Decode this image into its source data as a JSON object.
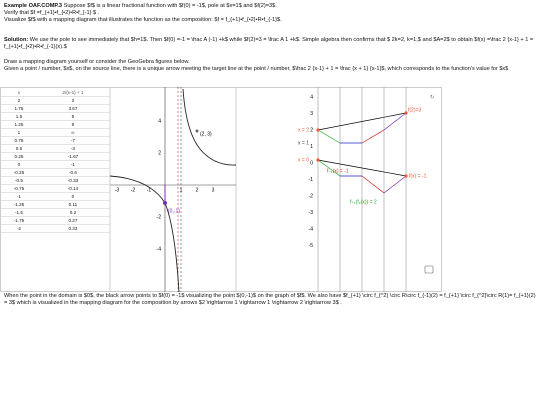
{
  "header": {
    "title": "Example OAF.COMP.3",
    "lines": [
      " Suppose $f$ is a linear fractional function with $f(0) = -1$, pole at $x=1$ and $f(2)=3$.",
      "Verify that $f =f_{+1}•f_{•2}•R•f_{-1} $ .",
      "Visualize $f$ with a mapping diagram that illustrates the function as the composition: $f = f_{+1}•f_{•2}•R•f_{-1}$."
    ]
  },
  "solution": {
    "label": "Solution:",
    "text": " We use the pole to see immediately that $h=1$. Then $f(0) =-1 = \\frac A (-1) +k$ while $f(2)=3 = \\frac A 1 +k$. Simple algebra then confirms that $ 2k=2, k=1,$ and $A=2$ to obtain $f(x) =\\frac 2 {x-1} + 1 = f_{+1}•f_{•2}•R•f_{-1}(x).$"
  },
  "instructions": [
    "Draw a mapping diagram yourself or consider the GeoGebra figures below.",
    "Given a point / number, $x$, on the source line, there is a unique arrow  meeting the target line at the point / number, $\\frac 2 {x-1} + 1 = \\frac {x + 1} {x-1}$,  which corresponds to the function's value for $x$"
  ],
  "table": {
    "header": [
      "x",
      "2/(x-1) + 1"
    ],
    "rows": [
      [
        "2",
        "3"
      ],
      [
        "1.75",
        "3.67"
      ],
      [
        "1.5",
        "5"
      ],
      [
        "1.25",
        "9"
      ],
      [
        "1",
        "∞"
      ],
      [
        "0.75",
        "-7"
      ],
      [
        "0.5",
        "-3"
      ],
      [
        "0.25",
        "-1.67"
      ],
      [
        "0",
        "-1"
      ],
      [
        "-0.25",
        "-0.6"
      ],
      [
        "-0.5",
        "-0.33"
      ],
      [
        "-0.75",
        "-0.14"
      ],
      [
        "-1",
        "0"
      ],
      [
        "-1.25",
        "0.11"
      ],
      [
        "-1.5",
        "0.2"
      ],
      [
        "-1.75",
        "0.27"
      ],
      [
        "-2",
        "0.33"
      ]
    ]
  },
  "graph": {
    "xticks": [
      "-3",
      "-2",
      "-1",
      "1",
      "2",
      "3"
    ],
    "yticks": [
      "4",
      "2",
      "-2",
      "-4"
    ],
    "point_labels": [
      "(2, 3)",
      "(0,-1)"
    ]
  },
  "mapping": {
    "axis_labels": [
      "4",
      "3",
      "2",
      "1",
      "0",
      "-1",
      "-2",
      "-3",
      "-4",
      "-5"
    ],
    "labels": [
      "x = 2",
      "x = 1",
      "x = 0",
      "f(2)=3",
      "f(x) = -1",
      "f₋₁(x) = -1",
      "f₊₁(f₂(x)) = 2"
    ]
  },
  "footer": "When the point in the domain is $0$, the black arrow points to $f(0) = -1$ visualizing the point $(0,-1)$ on the graph of $f$. We also have $f_{+1} \\circ f_{^2} \\circ R\\circ f_{-1}(2) = f_{+1} \\circ f_{^2}\\circ R(1)= f_{+1}(2) = 3$  which is visualized in the mapping diagram for the composition by arrows $2 \\rightarrow 1 \\rightarrow 1 \\rightarrow 2 \\rightarrow 3$ ."
}
